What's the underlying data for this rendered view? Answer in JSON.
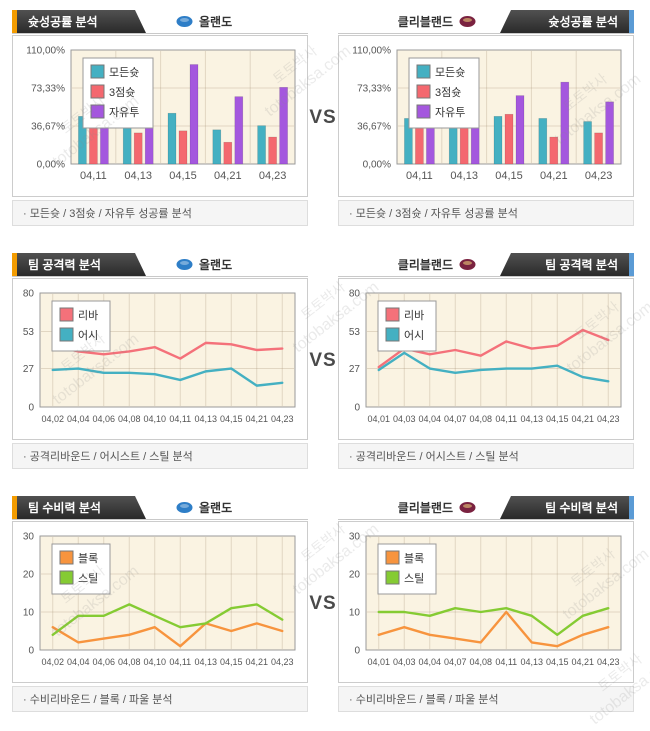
{
  "vs_label": "VS",
  "watermark": {
    "line1": "토토박사",
    "line2": "totobaksa.com"
  },
  "colors": {
    "plot_bg": "#faf3e2",
    "plot_border": "#999999",
    "grid": "rgba(160,140,110,0.28)",
    "axis_text": "#555555",
    "legend_text": "#333333",
    "accent_orange": "#f39c00",
    "accent_blue": "#5b9bd5",
    "teal": "#44b0c2",
    "pink": "#f4686f",
    "purple": "#a457de",
    "orange": "#f7943e",
    "green": "#85cb33"
  },
  "rows": [
    {
      "caption": "· 모든슛 / 3점슛 / 자유투 성공률 분석",
      "left": {
        "tab": "슛성공률 분석",
        "team": "올랜도",
        "team_color": "#2e7ec7",
        "chart_data": {
          "type": "bar",
          "title": "슛성공률 분석 - 올랜도",
          "categories": [
            "04,11",
            "04,13",
            "04,15",
            "04,21",
            "04,23"
          ],
          "series": [
            {
              "name": "모든슛",
              "color": "#44b0c2",
              "values": [
                46,
                45,
                49,
                33,
                37
              ]
            },
            {
              "name": "3점슛",
              "color": "#f4686f",
              "values": [
                37,
                30,
                32,
                21,
                26
              ]
            },
            {
              "name": "자유투",
              "color": "#a457de",
              "values": [
                62,
                77,
                96,
                65,
                74
              ]
            }
          ],
          "ylim": [
            0,
            110
          ],
          "tick_values": [
            0,
            36.67,
            73.33,
            110
          ],
          "tick_labels": [
            "0,00%",
            "36,67%",
            "73,33%",
            "110,00%"
          ],
          "legend_position": "top-left",
          "grid": true
        }
      },
      "right": {
        "tab": "슛성공률 분석",
        "team": "클리블랜드",
        "team_color": "#7a2240",
        "chart_data": {
          "type": "bar",
          "title": "슛성공률 분석 - 클리블랜드",
          "categories": [
            "04,11",
            "04,13",
            "04,15",
            "04,21",
            "04,23"
          ],
          "series": [
            {
              "name": "모든슛",
              "color": "#44b0c2",
              "values": [
                44,
                51,
                46,
                44,
                41
              ]
            },
            {
              "name": "3점슛",
              "color": "#f4686f",
              "values": [
                40,
                40,
                48,
                26,
                30
              ]
            },
            {
              "name": "자유투",
              "color": "#a457de",
              "values": [
                57,
                68,
                66,
                79,
                60
              ]
            }
          ],
          "ylim": [
            0,
            110
          ],
          "tick_values": [
            0,
            36.67,
            73.33,
            110
          ],
          "tick_labels": [
            "0,00%",
            "36,67%",
            "73,33%",
            "110,00%"
          ],
          "legend_position": "top-left",
          "grid": true
        }
      }
    },
    {
      "caption": "· 공격리바운드 / 어시스트 / 스틸 분석",
      "left": {
        "tab": "팀 공격력 분석",
        "team": "올랜도",
        "team_color": "#2e7ec7",
        "chart_data": {
          "type": "line",
          "title": "팀 공격력 분석 - 올랜도",
          "categories": [
            "04,02",
            "04,04",
            "04,06",
            "04,08",
            "04,10",
            "04,11",
            "04,13",
            "04,15",
            "04,21",
            "04,23"
          ],
          "series": [
            {
              "name": "리바",
              "color": "#f4717a",
              "values": [
                43,
                39,
                37,
                39,
                42,
                34,
                45,
                44,
                40,
                41
              ]
            },
            {
              "name": "어시",
              "color": "#44b0c2",
              "values": [
                26,
                27,
                24,
                24,
                23,
                19,
                25,
                27,
                15,
                17
              ]
            }
          ],
          "ylim": [
            0,
            80
          ],
          "tick_values": [
            0,
            27,
            53,
            80
          ],
          "tick_labels": [
            "0",
            "27",
            "53",
            "80"
          ],
          "legend_position": "top-left",
          "grid": true
        }
      },
      "right": {
        "tab": "팀 공격력 분석",
        "team": "클리블랜드",
        "team_color": "#7a2240",
        "chart_data": {
          "type": "line",
          "title": "팀 공격력 분석 - 클리블랜드",
          "categories": [
            "04,01",
            "04,03",
            "04,04",
            "04,07",
            "04,08",
            "04,11",
            "04,13",
            "04,15",
            "04,21",
            "04,23"
          ],
          "series": [
            {
              "name": "리바",
              "color": "#f4717a",
              "values": [
                28,
                41,
                37,
                40,
                36,
                46,
                41,
                43,
                54,
                47
              ]
            },
            {
              "name": "어시",
              "color": "#44b0c2",
              "values": [
                26,
                38,
                27,
                24,
                26,
                27,
                27,
                29,
                21,
                18
              ]
            }
          ],
          "ylim": [
            0,
            80
          ],
          "tick_values": [
            0,
            27,
            53,
            80
          ],
          "tick_labels": [
            "0",
            "27",
            "53",
            "80"
          ],
          "legend_position": "top-left",
          "grid": true
        }
      }
    },
    {
      "caption": "· 수비리바운드 / 블록 / 파울 분석",
      "left": {
        "tab": "팀 수비력 분석",
        "team": "올랜도",
        "team_color": "#2e7ec7",
        "chart_data": {
          "type": "line",
          "title": "팀 수비력 분석 - 올랜도",
          "categories": [
            "04,02",
            "04,04",
            "04,06",
            "04,08",
            "04,10",
            "04,11",
            "04,13",
            "04,15",
            "04,21",
            "04,23"
          ],
          "series": [
            {
              "name": "블록",
              "color": "#f7943e",
              "values": [
                6,
                2,
                3,
                4,
                6,
                1,
                7,
                5,
                7,
                5
              ]
            },
            {
              "name": "스틸",
              "color": "#85cb33",
              "values": [
                4,
                9,
                9,
                12,
                9,
                6,
                7,
                11,
                12,
                8
              ]
            }
          ],
          "ylim": [
            0,
            30
          ],
          "tick_values": [
            0,
            10,
            20,
            30
          ],
          "tick_labels": [
            "0",
            "10",
            "20",
            "30"
          ],
          "legend_position": "top-left",
          "grid": true
        }
      },
      "right": {
        "tab": "팀 수비력 분석",
        "team": "클리블랜드",
        "team_color": "#7a2240",
        "chart_data": {
          "type": "line",
          "title": "팀 수비력 분석 - 클리블랜드",
          "categories": [
            "04,01",
            "04,03",
            "04,04",
            "04,07",
            "04,08",
            "04,11",
            "04,13",
            "04,15",
            "04,21",
            "04,23"
          ],
          "series": [
            {
              "name": "블록",
              "color": "#f7943e",
              "values": [
                4,
                6,
                4,
                3,
                2,
                10,
                2,
                1,
                4,
                6
              ]
            },
            {
              "name": "스틸",
              "color": "#85cb33",
              "values": [
                10,
                10,
                9,
                11,
                10,
                11,
                9,
                4,
                9,
                11
              ]
            }
          ],
          "ylim": [
            0,
            30
          ],
          "tick_values": [
            0,
            10,
            20,
            30
          ],
          "tick_labels": [
            "0",
            "10",
            "20",
            "30"
          ],
          "legend_position": "top-left",
          "grid": true
        }
      }
    }
  ]
}
